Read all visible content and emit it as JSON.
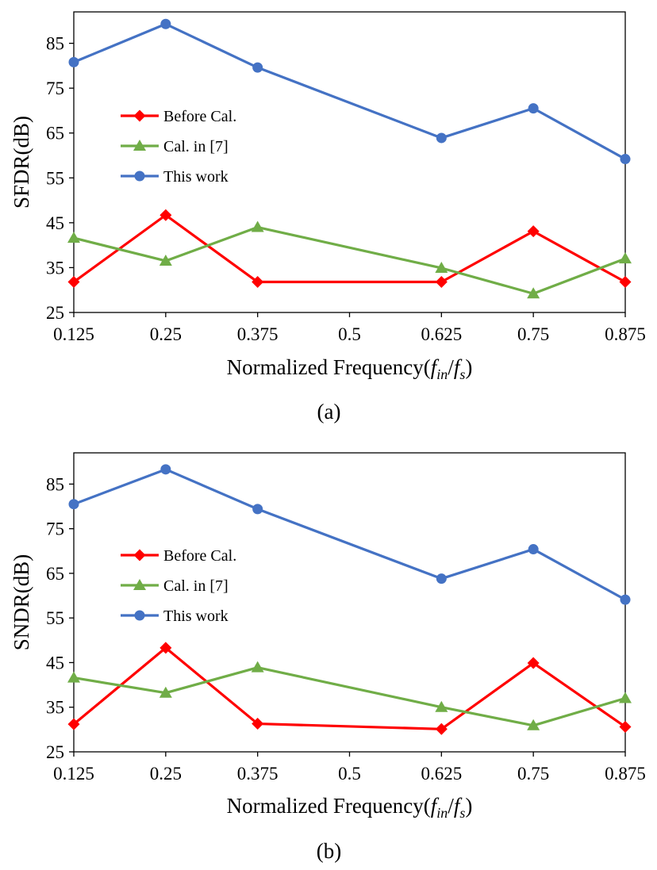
{
  "chart_data": [
    {
      "type": "line",
      "caption": "(a)",
      "ylabel": "SFDR(dB)",
      "xlabel": {
        "prefix": "Normalized Frequency(",
        "f1": "f",
        "sub1": "in",
        "slash": "/",
        "f2": "f",
        "sub2": "s",
        "suffix": ")"
      },
      "x_ticks": [
        "0.125",
        "0.25",
        "0.375",
        "0.5",
        "0.625",
        "0.75",
        "0.875"
      ],
      "y_ticks": [
        "25",
        "35",
        "45",
        "55",
        "65",
        "75",
        "85"
      ],
      "xlim": [
        0.125,
        0.875
      ],
      "ylim": [
        25,
        92
      ],
      "grid": false,
      "legend_position": "left-middle",
      "series": [
        {
          "name": "Before Cal.",
          "color": "#ff0000",
          "marker": "diamond",
          "x": [
            0.125,
            0.25,
            0.375,
            0.625,
            0.75,
            0.875
          ],
          "y": [
            31.8,
            46.7,
            31.8,
            31.8,
            43.1,
            31.8
          ]
        },
        {
          "name": "Cal. in [7]",
          "color": "#70ad47",
          "marker": "triangle",
          "x": [
            0.125,
            0.25,
            0.375,
            0.625,
            0.75,
            0.875
          ],
          "y": [
            41.6,
            36.5,
            44.0,
            34.9,
            29.2,
            37.0
          ]
        },
        {
          "name": "This work",
          "color": "#4472c4",
          "marker": "circle",
          "x": [
            0.125,
            0.25,
            0.375,
            0.625,
            0.75,
            0.875
          ],
          "y": [
            80.8,
            89.3,
            79.6,
            63.9,
            70.5,
            59.2
          ]
        }
      ]
    },
    {
      "type": "line",
      "caption": "(b)",
      "ylabel": "SNDR(dB)",
      "xlabel": {
        "prefix": "Normalized Frequency(",
        "f1": "f",
        "sub1": "in",
        "slash": "/",
        "f2": "f",
        "sub2": "s",
        "suffix": ")"
      },
      "x_ticks": [
        "0.125",
        "0.25",
        "0.375",
        "0.5",
        "0.625",
        "0.75",
        "0.875"
      ],
      "y_ticks": [
        "25",
        "35",
        "45",
        "55",
        "65",
        "75",
        "85"
      ],
      "xlim": [
        0.125,
        0.875
      ],
      "ylim": [
        25,
        92
      ],
      "grid": false,
      "legend_position": "left-middle",
      "series": [
        {
          "name": "Before Cal.",
          "color": "#ff0000",
          "marker": "diamond",
          "x": [
            0.125,
            0.25,
            0.375,
            0.625,
            0.75,
            0.875
          ],
          "y": [
            31.2,
            48.3,
            31.3,
            30.1,
            44.9,
            30.6
          ]
        },
        {
          "name": "Cal. in [7]",
          "color": "#70ad47",
          "marker": "triangle",
          "x": [
            0.125,
            0.25,
            0.375,
            0.625,
            0.75,
            0.875
          ],
          "y": [
            41.6,
            38.2,
            43.9,
            35.0,
            30.9,
            37.0
          ]
        },
        {
          "name": "This work",
          "color": "#4472c4",
          "marker": "circle",
          "x": [
            0.125,
            0.25,
            0.375,
            0.625,
            0.75,
            0.875
          ],
          "y": [
            80.5,
            88.3,
            79.4,
            63.8,
            70.4,
            59.1
          ]
        }
      ]
    }
  ]
}
